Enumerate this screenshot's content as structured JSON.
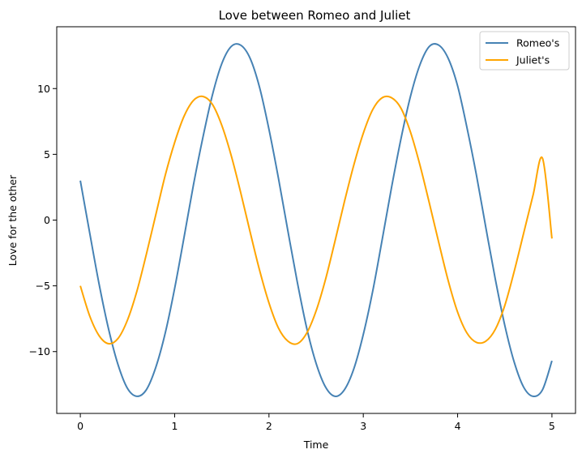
{
  "chart_data": {
    "type": "line",
    "title": "Love between Romeo and Juliet",
    "xlabel": "Time",
    "ylabel": "Love for the other",
    "xlim": [
      -0.25,
      5.25
    ],
    "ylim": [
      -14.7,
      14.7
    ],
    "xticks": [
      0,
      1,
      2,
      3,
      4,
      5
    ],
    "xtick_labels": [
      "0",
      "1",
      "2",
      "3",
      "4",
      "5"
    ],
    "yticks": [
      -10,
      -5,
      0,
      5,
      10
    ],
    "ytick_labels": [
      "−10",
      "−5",
      "0",
      "5",
      "10"
    ],
    "grid": false,
    "legend_position": "top-right",
    "series": [
      {
        "name": "Romeo's",
        "color": "#4682b4",
        "x": [
          0,
          0.1,
          0.2,
          0.3,
          0.4,
          0.5,
          0.6,
          0.7,
          0.8,
          0.9,
          1.0,
          1.1,
          1.2,
          1.3,
          1.4,
          1.5,
          1.6,
          1.7,
          1.8,
          1.9,
          2.0,
          2.1,
          2.2,
          2.3,
          2.4,
          2.5,
          2.6,
          2.7,
          2.8,
          2.9,
          3.0,
          3.1,
          3.2,
          3.3,
          3.4,
          3.5,
          3.6,
          3.7,
          3.8,
          3.9,
          4.0,
          4.1,
          4.2,
          4.3,
          4.4,
          4.5,
          4.6,
          4.7,
          4.8,
          4.9,
          5.0
        ],
        "y": [
          3.0,
          -1.0,
          -4.9,
          -8.3,
          -11.0,
          -12.8,
          -13.4,
          -12.9,
          -11.2,
          -8.6,
          -5.2,
          -1.3,
          2.7,
          6.3,
          9.5,
          11.9,
          13.2,
          13.3,
          12.3,
          10.1,
          6.9,
          3.2,
          -0.8,
          -4.7,
          -8.2,
          -10.9,
          -12.7,
          -13.4,
          -12.9,
          -11.3,
          -8.7,
          -5.4,
          -1.5,
          2.5,
          6.2,
          9.4,
          11.8,
          13.2,
          13.3,
          12.3,
          10.2,
          7.0,
          3.4,
          -0.6,
          -4.5,
          -8.0,
          -10.8,
          -12.7,
          -13.4,
          -12.9,
          -10.7
        ]
      },
      {
        "name": "Juliet's",
        "color": "#ffa500",
        "x": [
          0,
          0.1,
          0.2,
          0.3,
          0.4,
          0.5,
          0.6,
          0.7,
          0.8,
          0.9,
          1.0,
          1.1,
          1.2,
          1.3,
          1.4,
          1.5,
          1.6,
          1.7,
          1.8,
          1.9,
          2.0,
          2.1,
          2.2,
          2.3,
          2.4,
          2.5,
          2.6,
          2.7,
          2.8,
          2.9,
          3.0,
          3.1,
          3.2,
          3.3,
          3.4,
          3.5,
          3.6,
          3.7,
          3.8,
          3.9,
          4.0,
          4.1,
          4.2,
          4.3,
          4.4,
          4.5,
          4.6,
          4.7,
          4.8,
          4.9,
          5.0
        ],
        "y": [
          -5.0,
          -7.3,
          -8.8,
          -9.4,
          -9.0,
          -7.6,
          -5.4,
          -2.6,
          0.4,
          3.4,
          5.9,
          7.9,
          9.1,
          9.4,
          8.8,
          7.2,
          4.9,
          2.1,
          -0.9,
          -3.8,
          -6.3,
          -8.2,
          -9.2,
          -9.4,
          -8.6,
          -6.9,
          -4.5,
          -1.6,
          1.4,
          4.2,
          6.6,
          8.4,
          9.3,
          9.3,
          8.5,
          6.7,
          4.2,
          1.3,
          -1.7,
          -4.6,
          -7.0,
          -8.6,
          -9.3,
          -9.2,
          -8.3,
          -6.5,
          -3.9,
          -1.0,
          1.9,
          4.7,
          -1.4
        ]
      }
    ]
  }
}
